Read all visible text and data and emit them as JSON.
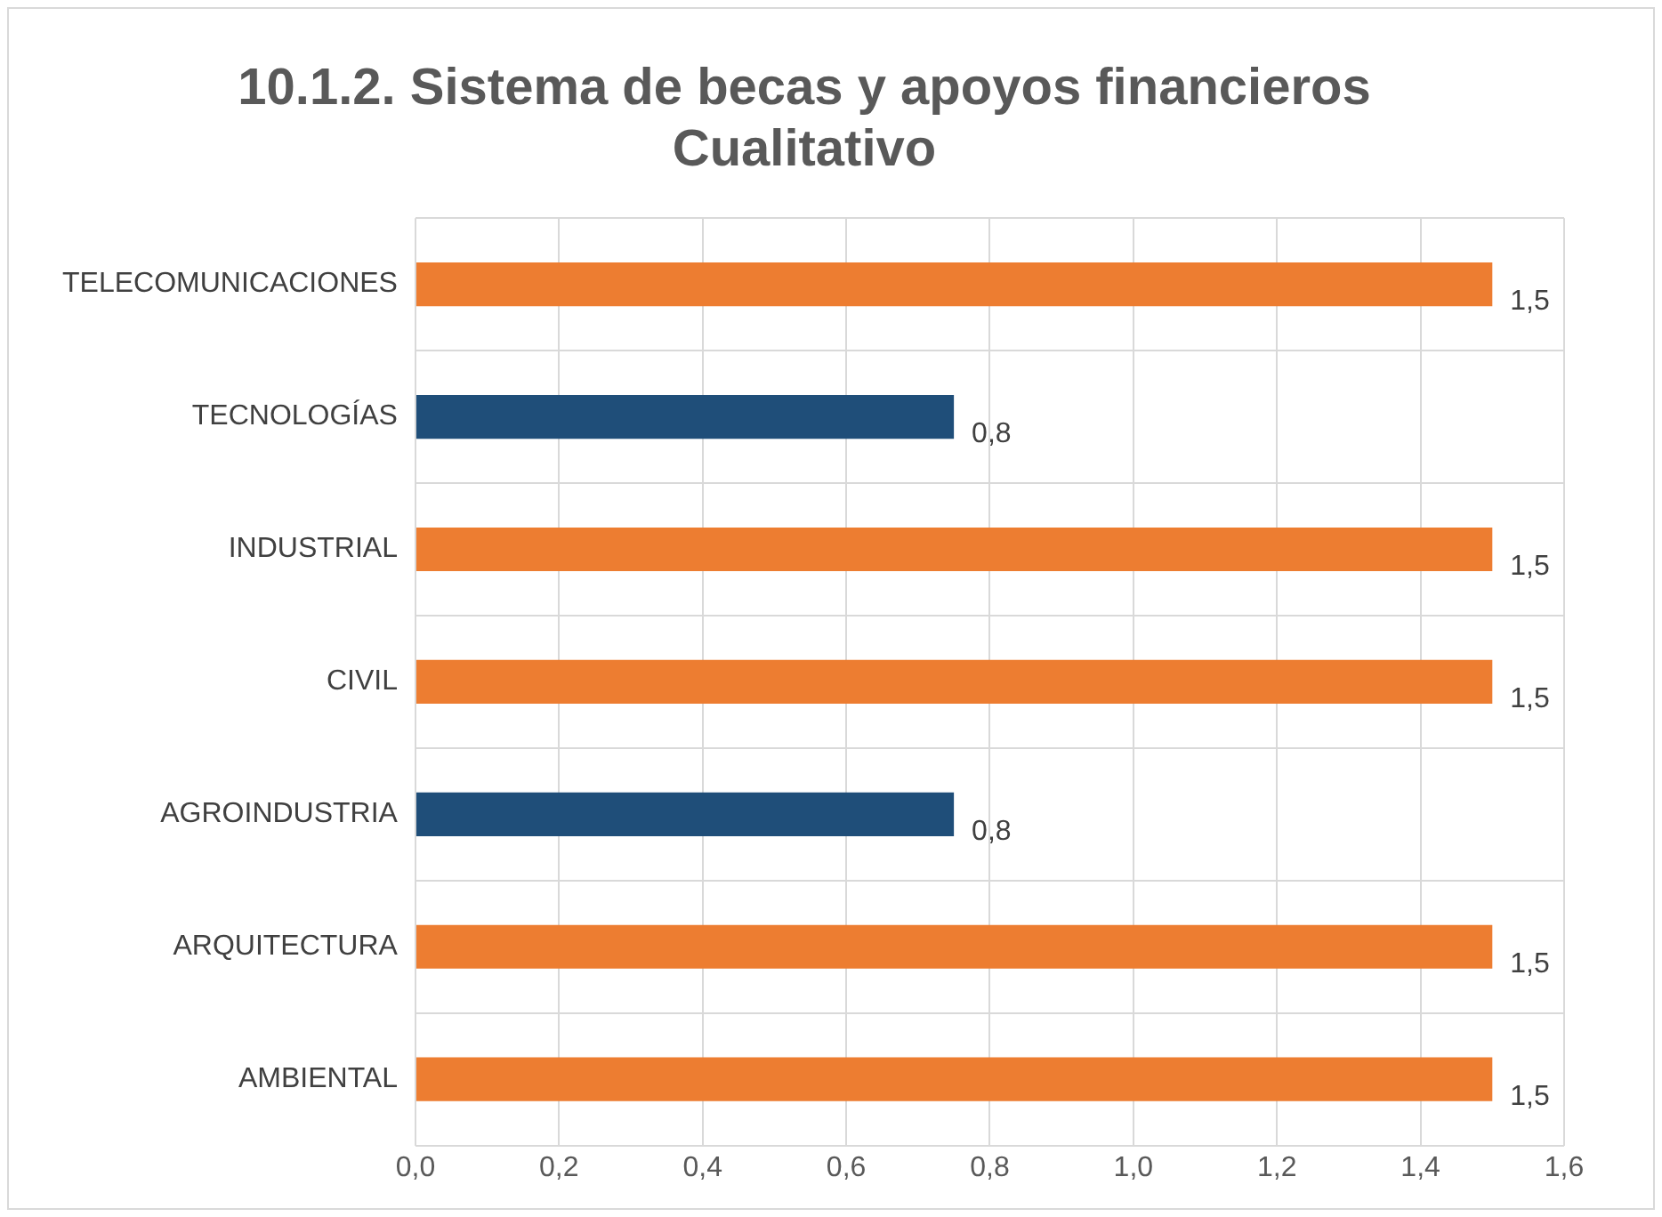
{
  "chart_data": {
    "type": "bar",
    "orientation": "horizontal",
    "title": "10.1.2. Sistema de becas y apoyos financieros\nCualitativo",
    "categories": [
      "TELECOMUNICACIONES",
      "TECNOLOGÍAS",
      "INDUSTRIAL",
      "CIVIL",
      "AGROINDUSTRIA",
      "ARQUITECTURA",
      "AMBIENTAL"
    ],
    "values": [
      1.5,
      0.75,
      1.5,
      1.5,
      0.75,
      1.5,
      1.5
    ],
    "colors": [
      "#ed7d31",
      "#1f4e79",
      "#ed7d31",
      "#ed7d31",
      "#1f4e79",
      "#ed7d31",
      "#ed7d31"
    ],
    "value_labels": [
      "1,5",
      "0,8",
      "1,5",
      "1,5",
      "0,8",
      "1,5",
      "1,5"
    ],
    "xlim": [
      0,
      1.6
    ],
    "xticks": [
      {
        "value": 0,
        "label": "0,0"
      },
      {
        "value": 0.2,
        "label": "0,2"
      },
      {
        "value": 0.4,
        "label": "0,4"
      },
      {
        "value": 0.6,
        "label": "0,6"
      },
      {
        "value": 0.8,
        "label": "0,8"
      },
      {
        "value": 1,
        "label": "1,0"
      },
      {
        "value": 1.2,
        "label": "1,2"
      },
      {
        "value": 1.4,
        "label": "1,4"
      },
      {
        "value": 1.6,
        "label": "1,6"
      }
    ],
    "grid": true,
    "legend": false
  }
}
